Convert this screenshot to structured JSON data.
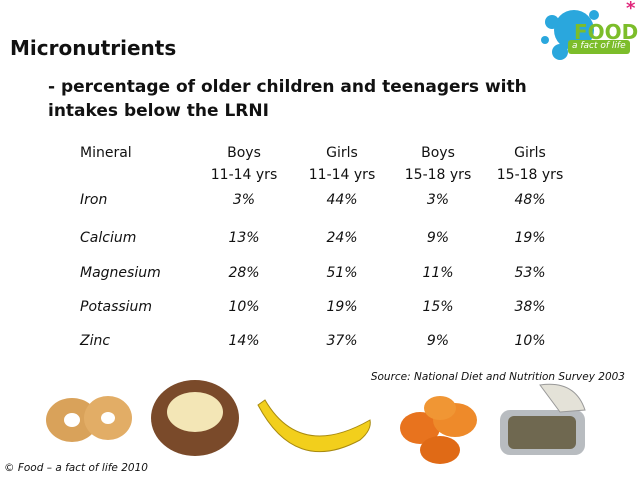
{
  "title": "Micronutrients",
  "subtitle": [
    "- percentage of older children and teenagers with",
    "intakes below the LRNI"
  ],
  "logo": {
    "main": "FOOD",
    "tagline": "a fact of life"
  },
  "table": {
    "columns": [
      {
        "label": "Mineral"
      },
      {
        "label": "Boys",
        "sub": "11-14 yrs"
      },
      {
        "label": "Girls",
        "sub": "11-14 yrs"
      },
      {
        "label": "Boys",
        "sub": "15-18 yrs"
      },
      {
        "label": "Girls",
        "sub": "15-18 yrs"
      }
    ],
    "rows": [
      [
        "Iron",
        "3%",
        "44%",
        "3%",
        "48%"
      ],
      [
        "Calcium",
        "13%",
        "24%",
        "9%",
        "19%"
      ],
      [
        "Magnesium",
        "28%",
        "51%",
        "11%",
        "53%"
      ],
      [
        "Potassium",
        "10%",
        "19%",
        "15%",
        "38%"
      ],
      [
        "Zinc",
        "14%",
        "37%",
        "9%",
        "10%"
      ]
    ]
  },
  "source": "Source: National Diet and Nutrition Survey 2003",
  "copyright": "© Food – a fact of life 2010"
}
